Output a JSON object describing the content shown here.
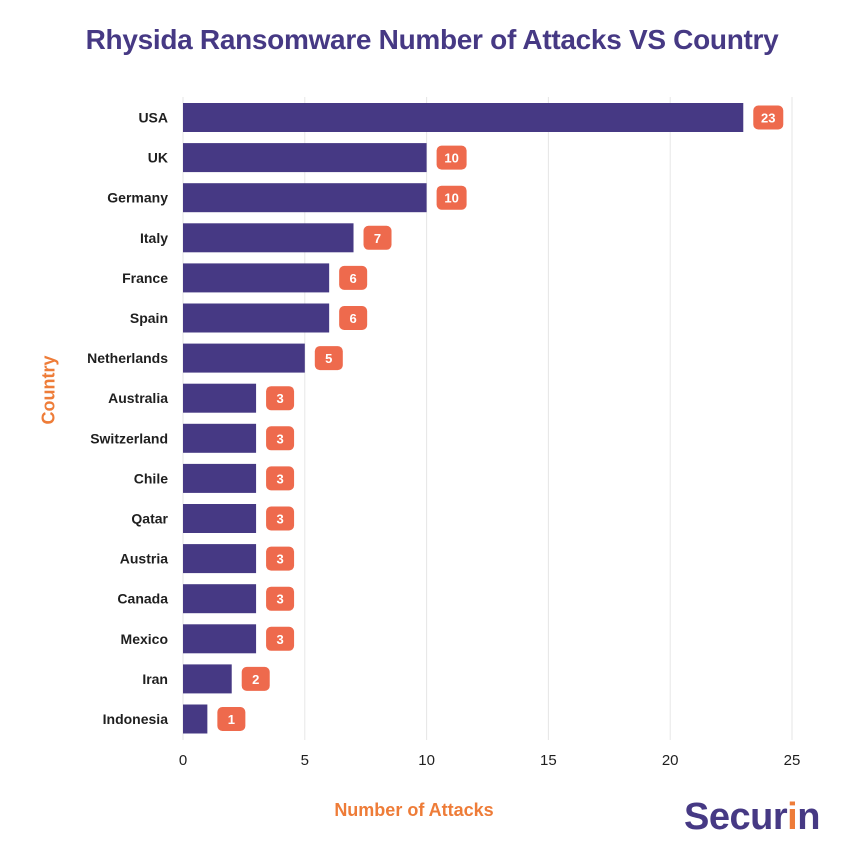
{
  "chart_data": {
    "type": "bar",
    "orientation": "horizontal",
    "title": "Rhysida Ransomware Number of Attacks VS Country",
    "xlabel": "Number of Attacks",
    "ylabel": "Country",
    "categories": [
      "USA",
      "UK",
      "Germany",
      "Italy",
      "France",
      "Spain",
      "Netherlands",
      "Australia",
      "Switzerland",
      "Chile",
      "Qatar",
      "Austria",
      "Canada",
      "Mexico",
      "Iran",
      "Indonesia"
    ],
    "values": [
      23,
      10,
      10,
      7,
      6,
      6,
      5,
      3,
      3,
      3,
      3,
      3,
      3,
      3,
      2,
      1
    ],
    "xlim": [
      0,
      25
    ],
    "xticks": [
      0,
      5,
      10,
      15,
      20,
      25
    ],
    "grid": "vertical",
    "bar_color": "#463984",
    "label_color": "#ee6a4d",
    "axis_title_color": "#ee7c38"
  },
  "brand": {
    "logo_main": "Secur",
    "logo_accent_letter": "i",
    "logo_tail": "n",
    "color": "#463984",
    "accent_color": "#ee7c38"
  }
}
